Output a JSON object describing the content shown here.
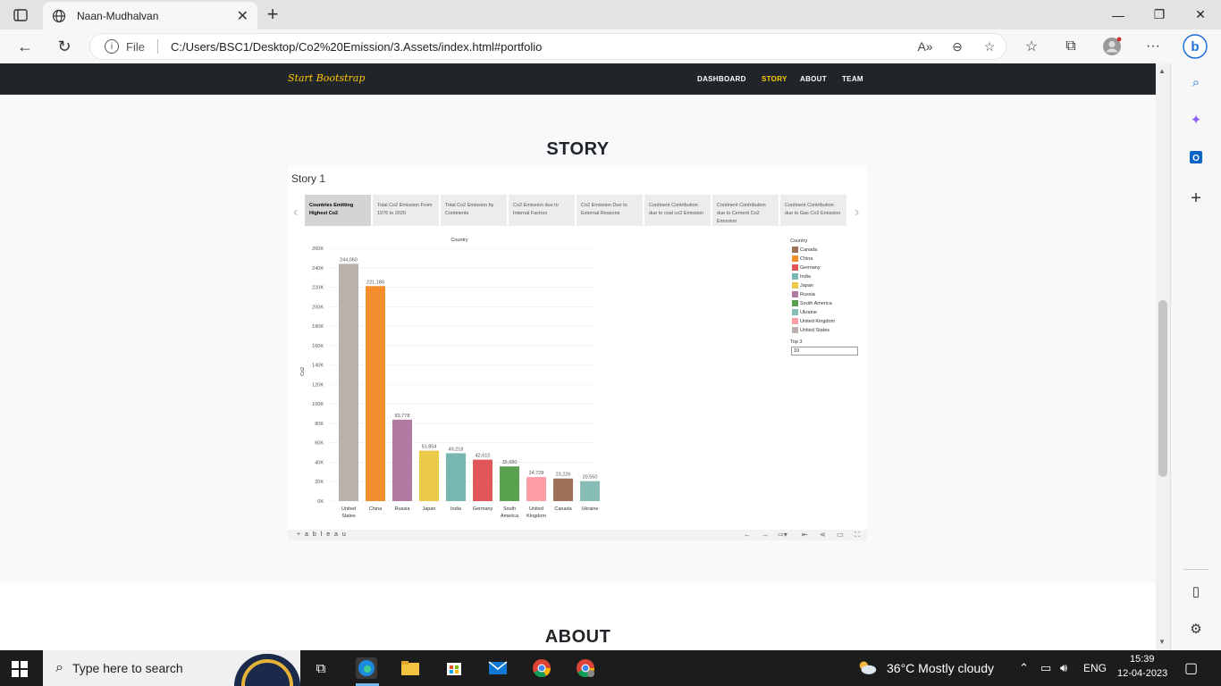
{
  "browser": {
    "tab_title": "Naan-Mudhalvan",
    "address_file": "File",
    "url": "C:/Users/BSC1/Desktop/Co2%20Emission/3.Assets/index.html#portfolio"
  },
  "site": {
    "brand": "Start Bootstrap",
    "nav": [
      "DASHBOARD",
      "STORY",
      "ABOUT",
      "TEAM"
    ],
    "active_nav": "STORY",
    "section_title": "STORY",
    "next_section_title": "ABOUT"
  },
  "story": {
    "title": "Story 1",
    "points": [
      "Countries Emitting Highest Co2",
      "Total Co2 Emission From 1976 to 2020",
      "Total Co2 Emission by Continents",
      "Co2 Emission due to Internal Factors",
      "Co2 Emission Due to External Reasons",
      "Continent Contribution due to coal co2 Emission",
      "Continent Contribution due to Cement Co2 Emission",
      "Continent Contribution due to Gas Co2 Emission"
    ],
    "legend_title": "Country",
    "legend": [
      {
        "name": "Canada",
        "color": "#9c7156"
      },
      {
        "name": "China",
        "color": "#f28e2b"
      },
      {
        "name": "Germany",
        "color": "#e15759"
      },
      {
        "name": "India",
        "color": "#76b7b2"
      },
      {
        "name": "Japan",
        "color": "#edc948"
      },
      {
        "name": "Russia",
        "color": "#b07aa1"
      },
      {
        "name": "South America",
        "color": "#59a14f"
      },
      {
        "name": "Ukraine",
        "color": "#86bcb6"
      },
      {
        "name": "United Kingdom",
        "color": "#ff9da7"
      },
      {
        "name": "United States",
        "color": "#bab0ac"
      }
    ],
    "top_label": "Top 3",
    "top_value": "10",
    "footer_logo": "+ a b l e a u"
  },
  "chart_data": {
    "type": "bar",
    "title": "Country",
    "ylabel": "Co2",
    "ylim": [
      0,
      260000
    ],
    "yticks": [
      "0K",
      "20K",
      "40K",
      "60K",
      "80K",
      "100K",
      "120K",
      "140K",
      "160K",
      "180K",
      "200K",
      "220K",
      "240K",
      "260K"
    ],
    "categories": [
      "United States",
      "China",
      "Russia",
      "Japan",
      "India",
      "Germany",
      "South America",
      "United Kingdom",
      "Canada",
      "Ukraine"
    ],
    "values": [
      244060,
      221180,
      83778,
      51854,
      49218,
      42610,
      35680,
      24728,
      23226,
      20550
    ],
    "value_labels": [
      "244,060",
      "221,180",
      "83,778",
      "51,854",
      "49,218",
      "42,610",
      "35,680",
      "24,728",
      "23,226",
      "20,550"
    ],
    "colors": [
      "#bab0ac",
      "#f28e2b",
      "#b07aa1",
      "#edc948",
      "#76b7b2",
      "#e15759",
      "#59a14f",
      "#ff9da7",
      "#9c7156",
      "#86bcb6"
    ]
  },
  "taskbar": {
    "search_placeholder": "Type here to search",
    "weather": "36°C  Mostly cloudy",
    "lang": "ENG",
    "time": "15:39",
    "date": "12-04-2023"
  }
}
